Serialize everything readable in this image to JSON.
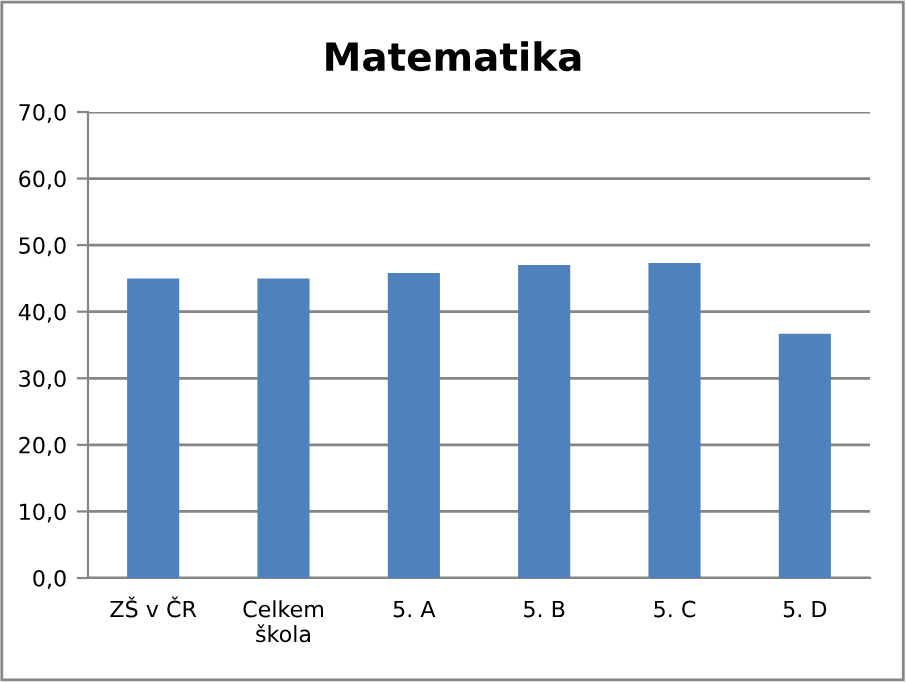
{
  "chart_data": {
    "type": "bar",
    "title": "Matematika",
    "categories": [
      "ZŠ v ČR",
      "Celkem\nškola",
      "5. A",
      "5. B",
      "5. C",
      "5. D"
    ],
    "values": [
      45.0,
      45.0,
      45.8,
      47.0,
      47.3,
      36.7
    ],
    "color": "#4f81bd",
    "ylim": [
      0,
      70
    ],
    "yticks": [
      {
        "value": 0,
        "label": "0,0"
      },
      {
        "value": 10,
        "label": "10,0"
      },
      {
        "value": 20,
        "label": "20,0"
      },
      {
        "value": 30,
        "label": "30,0"
      },
      {
        "value": 40,
        "label": "40,0"
      },
      {
        "value": 50,
        "label": "50,0"
      },
      {
        "value": 60,
        "label": "60,0"
      },
      {
        "value": 70,
        "label": "70,0"
      }
    ],
    "grid": "y",
    "legend": false
  }
}
